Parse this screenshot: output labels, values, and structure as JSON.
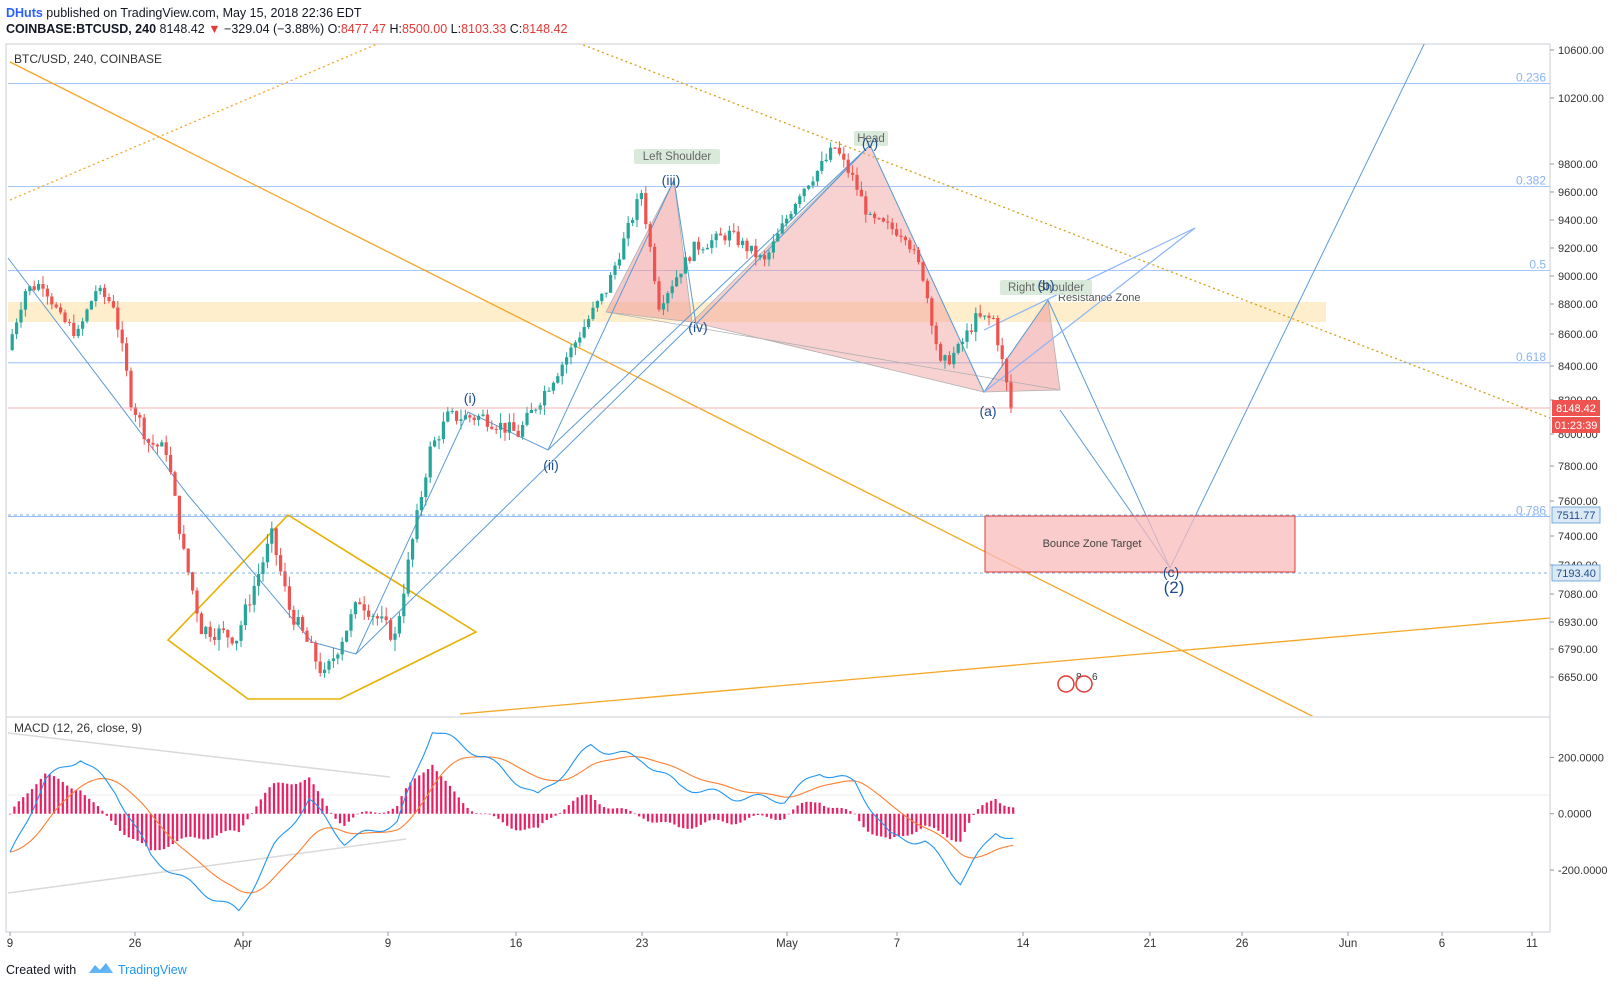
{
  "header": {
    "author": "DHuts",
    "published_text": "published on TradingView.com, May 15, 2018 22:36 EDT",
    "symbol": "COINBASE:BTCUSD, 240",
    "last": "8148.42",
    "change": "−329.04 (−3.88%)",
    "o_label": "O:",
    "o_value": "8477.47",
    "h_label": "H:",
    "h_value": "8500.00",
    "l_label": "L:",
    "l_value": "8103.33",
    "c_label": "C:",
    "c_value": "8148.42"
  },
  "footer": {
    "created_with": "Created with",
    "brand": "TradingView"
  },
  "colors": {
    "up": "#26a69a",
    "down": "#ef5350",
    "orange": "#f5a623",
    "blue": "#5b9bd5",
    "fib": "#8ab4f8",
    "macd_line": "#2196f3",
    "signal_line": "#ff7f32",
    "hist": "#e91e63"
  },
  "chart_data": [
    {
      "type": "line",
      "title": "BTC/USD, 240, COINBASE",
      "x_ticks": [
        "9",
        "26",
        "Apr",
        "9",
        "16",
        "23",
        "May",
        "7",
        "14",
        "21",
        "26",
        "Jun",
        "6",
        "11"
      ],
      "y_ticks": [
        "10600.00",
        "10200.00",
        "9800.00",
        "9600.00",
        "9400.00",
        "9200.00",
        "9000.00",
        "8800.00",
        "8600.00",
        "8400.00",
        "8200.00",
        "8000.00",
        "7800.00",
        "7600.00",
        "7400.00",
        "7240.00",
        "7080.00",
        "6930.00",
        "6790.00",
        "6650.00"
      ],
      "ylim": [
        6560,
        10720
      ],
      "price_path": [
        [
          "Mar 19",
          8500
        ],
        [
          "Mar 20",
          8900
        ],
        [
          "Mar 21",
          8950
        ],
        [
          "Mar 22",
          8700
        ],
        [
          "Mar 23",
          8600
        ],
        [
          "Mar 24",
          8900
        ],
        [
          "Mar 25",
          8800
        ],
        [
          "Mar 26",
          8200
        ],
        [
          "Mar 27",
          7950
        ],
        [
          "Mar 28",
          7900
        ],
        [
          "Mar 29",
          7300
        ],
        [
          "Mar 30",
          6900
        ],
        [
          "Apr 1",
          6850
        ],
        [
          "Apr 3",
          7400
        ],
        [
          "Apr 4",
          7000
        ],
        [
          "Apr 6",
          6650
        ],
        [
          "Apr 8",
          7050
        ],
        [
          "Apr 10",
          6850
        ],
        [
          "Apr 12",
          7900
        ],
        [
          "Apr 13",
          8100
        ],
        [
          "Apr 15",
          8100
        ],
        [
          "Apr 17",
          8000
        ],
        [
          "Apr 20",
          8500
        ],
        [
          "Apr 22",
          8900
        ],
        [
          "Apr 24",
          9600
        ],
        [
          "Apr 25",
          8800
        ],
        [
          "Apr 27",
          9200
        ],
        [
          "Apr 29",
          9300
        ],
        [
          "May 1",
          9100
        ],
        [
          "May 3",
          9600
        ],
        [
          "May 5",
          9900
        ],
        [
          "May 6",
          9700
        ],
        [
          "May 7",
          9400
        ],
        [
          "May 9",
          9300
        ],
        [
          "May 10",
          9000
        ],
        [
          "May 11",
          8400
        ],
        [
          "May 12",
          8500
        ],
        [
          "May 13",
          8700
        ],
        [
          "May 14",
          8700
        ],
        [
          "May 15",
          8148.42
        ]
      ],
      "fib_levels": [
        {
          "label": "0.236",
          "price": 10320
        },
        {
          "label": "0.382",
          "price": 9640
        },
        {
          "label": "0.5",
          "price": 9040
        },
        {
          "label": "0.618",
          "price": 8420
        },
        {
          "label": "0.786",
          "price": 7511.77
        }
      ],
      "price_labels": [
        {
          "value": "8148.42",
          "countdown": "01:23:39"
        },
        {
          "value": "7511.77"
        },
        {
          "value": "7193.40"
        }
      ],
      "annotations": [
        {
          "text": "Left Shoulder"
        },
        {
          "text": "Head"
        },
        {
          "text": "Right Shoulder"
        },
        {
          "text": "Resistance Zone"
        },
        {
          "text": "Bounce Zone Target"
        },
        {
          "text": "(i)"
        },
        {
          "text": "(ii)"
        },
        {
          "text": "(iii)"
        },
        {
          "text": "(iv)"
        },
        {
          "text": "(v)"
        },
        {
          "text": "(a)"
        },
        {
          "text": "(b)"
        },
        {
          "text": "(c)"
        },
        {
          "text": "(2)"
        }
      ],
      "event_markers": [
        "8",
        "6"
      ]
    },
    {
      "type": "line",
      "title": "MACD (12, 26, close, 9)",
      "y_ticks": [
        "200.0000",
        "0.0000",
        "-200.0000"
      ],
      "ylim": [
        -420,
        340
      ],
      "macd_path": [
        [
          "Mar 19",
          -150
        ],
        [
          "Mar 21",
          120
        ],
        [
          "Mar 23",
          200
        ],
        [
          "Mar 25",
          80
        ],
        [
          "Mar 27",
          -150
        ],
        [
          "Mar 29",
          -240
        ],
        [
          "Apr 1",
          -350
        ],
        [
          "Apr 3",
          -120
        ],
        [
          "Apr 5",
          50
        ],
        [
          "Apr 7",
          -100
        ],
        [
          "Apr 10",
          -30
        ],
        [
          "Apr 12",
          300
        ],
        [
          "Apr 15",
          200
        ],
        [
          "Apr 18",
          60
        ],
        [
          "Apr 21",
          240
        ],
        [
          "Apr 24",
          190
        ],
        [
          "Apr 26",
          100
        ],
        [
          "Apr 29",
          60
        ],
        [
          "May 2",
          50
        ],
        [
          "May 4",
          150
        ],
        [
          "May 6",
          110
        ],
        [
          "May 8",
          -80
        ],
        [
          "May 10",
          -100
        ],
        [
          "May 12",
          -240
        ],
        [
          "May 14",
          -60
        ],
        [
          "May 15",
          -90
        ]
      ]
    }
  ]
}
